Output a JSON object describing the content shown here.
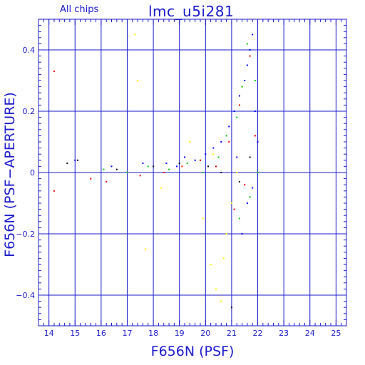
{
  "header": {
    "chips_label": "All chips",
    "title": "lmc_u5i281"
  },
  "chart_data": {
    "type": "scatter",
    "title": "lmc_u5i281",
    "subtitle": "All chips",
    "xlabel": "F656N (PSF)",
    "ylabel": "F656N (PSF−APERTURE)",
    "xlim": [
      13.6,
      25.4
    ],
    "ylim": [
      -0.5,
      0.5
    ],
    "xticks": [
      14,
      15,
      16,
      17,
      18,
      19,
      20,
      21,
      22,
      23,
      24,
      25
    ],
    "xtick_labels": [
      "14",
      "15",
      "16",
      "17",
      "18",
      "19",
      "20",
      "21",
      "22",
      "23",
      "24",
      "25"
    ],
    "yticks": [
      -0.4,
      -0.2,
      0,
      0.2,
      0.4
    ],
    "ytick_labels": [
      "−0.4",
      "−0.2",
      "0",
      "0.2",
      "0.4"
    ],
    "grid": true,
    "series_colors": [
      "#0000ff",
      "#00cc00",
      "#ff0000",
      "#ffff00",
      "#000000"
    ],
    "series": [
      {
        "color": "#0000ff",
        "points": [
          [
            18.5,
            0.03
          ],
          [
            18.9,
            0.02
          ],
          [
            19.2,
            0.05
          ],
          [
            19.6,
            0.04
          ],
          [
            20.0,
            0.06
          ],
          [
            20.3,
            0.08
          ],
          [
            20.6,
            0.1
          ],
          [
            20.9,
            0.15
          ],
          [
            21.1,
            0.2
          ],
          [
            21.3,
            0.25
          ],
          [
            21.5,
            0.3
          ],
          [
            21.6,
            0.35
          ],
          [
            21.7,
            0.4
          ],
          [
            21.8,
            0.45
          ],
          [
            21.9,
            0.2
          ],
          [
            22.0,
            0.1
          ],
          [
            21.8,
            -0.05
          ],
          [
            21.6,
            -0.1
          ],
          [
            21.4,
            -0.2
          ],
          [
            21.2,
            0.05
          ],
          [
            15.0,
            0.04
          ],
          [
            16.4,
            0.02
          ],
          [
            17.6,
            0.03
          ]
        ]
      },
      {
        "color": "#00cc00",
        "points": [
          [
            17.0,
            0.0
          ],
          [
            17.8,
            0.02
          ],
          [
            18.6,
            0.01
          ],
          [
            19.3,
            0.03
          ],
          [
            19.9,
            0.0
          ],
          [
            20.5,
            0.05
          ],
          [
            20.8,
            0.12
          ],
          [
            21.2,
            0.18
          ],
          [
            21.4,
            0.28
          ],
          [
            21.6,
            0.42
          ],
          [
            21.9,
            0.3
          ],
          [
            22.0,
            0.0
          ],
          [
            21.7,
            -0.08
          ],
          [
            21.3,
            -0.15
          ],
          [
            16.1,
            0.01
          ]
        ]
      },
      {
        "color": "#ff0000",
        "points": [
          [
            14.2,
            0.33
          ],
          [
            14.2,
            -0.06
          ],
          [
            15.6,
            -0.02
          ],
          [
            16.2,
            -0.03
          ],
          [
            17.5,
            -0.01
          ],
          [
            18.4,
            0.0
          ],
          [
            19.1,
            0.02
          ],
          [
            19.8,
            0.04
          ],
          [
            20.4,
            0.02
          ],
          [
            20.9,
            0.1
          ],
          [
            21.3,
            0.22
          ],
          [
            21.7,
            0.38
          ],
          [
            21.9,
            0.12
          ],
          [
            21.5,
            -0.04
          ],
          [
            21.1,
            -0.12
          ]
        ]
      },
      {
        "color": "#ffff00",
        "points": [
          [
            17.3,
            0.45
          ],
          [
            17.4,
            0.3
          ],
          [
            17.7,
            -0.25
          ],
          [
            18.3,
            -0.05
          ],
          [
            19.4,
            0.1
          ],
          [
            19.9,
            -0.15
          ],
          [
            20.2,
            -0.3
          ],
          [
            20.4,
            -0.38
          ],
          [
            20.6,
            -0.42
          ],
          [
            20.8,
            -0.2
          ],
          [
            21.0,
            -0.1
          ],
          [
            21.2,
            0.0
          ],
          [
            20.3,
            0.06
          ],
          [
            20.7,
            -0.28
          ]
        ]
      },
      {
        "color": "#000000",
        "points": [
          [
            14.7,
            0.03
          ],
          [
            15.1,
            0.04
          ],
          [
            16.6,
            0.01
          ],
          [
            18.0,
            0.02
          ],
          [
            19.0,
            0.03
          ],
          [
            20.1,
            0.02
          ],
          [
            20.6,
            0.0
          ],
          [
            21.0,
            -0.44
          ],
          [
            21.3,
            -0.03
          ],
          [
            21.7,
            0.05
          ]
        ]
      }
    ]
  }
}
